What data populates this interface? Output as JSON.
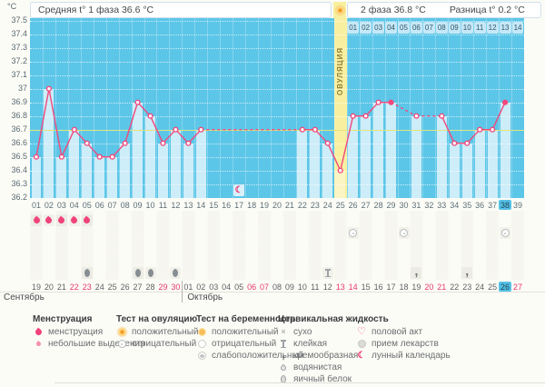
{
  "units_label": "°C",
  "header": {
    "phase1": "Средняя t° 1 фаза 36.6 °C",
    "phase2": "2 фаза 36.8 °C",
    "diff": "Разница t° 0.2 °C"
  },
  "chart_data": {
    "type": "line",
    "title": "Basal body temperature chart",
    "ylabel": "°C",
    "ylim": [
      36.2,
      37.5
    ],
    "yticks": [
      "37.5",
      "37.4",
      "37.3",
      "37.2",
      "37.1",
      "37",
      "36.9",
      "36.8",
      "36.7",
      "36.6",
      "36.5",
      "36.4",
      "36.3",
      "36.2"
    ],
    "x_labels": [
      "01",
      "02",
      "03",
      "04",
      "05",
      "06",
      "07",
      "08",
      "09",
      "10",
      "11",
      "12",
      "13",
      "14",
      "15",
      "16",
      "17",
      "18",
      "19",
      "20",
      "21",
      "22",
      "23",
      "24",
      "25",
      "26",
      "27",
      "28",
      "29",
      "30",
      "31",
      "32",
      "33",
      "34",
      "35",
      "36",
      "37",
      "38",
      "39"
    ],
    "temps": [
      36.5,
      37.0,
      36.5,
      36.7,
      36.6,
      36.5,
      36.5,
      36.6,
      36.9,
      36.8,
      36.6,
      36.7,
      36.6,
      36.7,
      null,
      null,
      null,
      null,
      null,
      null,
      null,
      36.7,
      36.7,
      36.6,
      36.4,
      36.8,
      36.8,
      36.9,
      36.9,
      null,
      36.8,
      null,
      36.8,
      36.6,
      36.6,
      36.7,
      36.7,
      36.9,
      null
    ],
    "filled_points": [
      29,
      38
    ],
    "coverline": 36.7,
    "ovulation_day": 25,
    "ovulation_label": "ОВУЛЯЦИЯ",
    "today_day": 38,
    "moon_day": 17,
    "phase2_strip": {
      "start_day": 26,
      "labels": [
        "01",
        "02",
        "03",
        "04",
        "05",
        "06",
        "07",
        "08",
        "09",
        "10",
        "11",
        "12",
        "13",
        "14"
      ]
    },
    "grid": true,
    "legend_position": "bottom"
  },
  "events": {
    "menstruation_days": [
      1,
      2,
      3,
      4,
      5
    ],
    "ovulation_test_negative_days": [
      26,
      30,
      38
    ],
    "cervical_fluid": [
      {
        "day": 5,
        "icon": "cf-eggwhite"
      },
      {
        "day": 9,
        "icon": "cf-eggwhite"
      },
      {
        "day": 10,
        "icon": "cf-eggwhite"
      },
      {
        "day": 12,
        "icon": "cf-eggwhite"
      },
      {
        "day": 24,
        "icon": "cf-sticky"
      },
      {
        "day": 31,
        "icon": "cf-creamy"
      },
      {
        "day": 35,
        "icon": "cf-creamy"
      }
    ]
  },
  "calendar": {
    "months": [
      {
        "name": "Сентябрь",
        "start_day": 1,
        "dates": [
          "19",
          "20",
          "21",
          "22",
          "23",
          "24",
          "25",
          "26",
          "27",
          "28",
          "29",
          "30"
        ],
        "weekend": [
          "22",
          "23",
          "29",
          "30"
        ],
        "today": ""
      },
      {
        "name": "Октябрь",
        "start_day": 13,
        "dates": [
          "01",
          "02",
          "03",
          "04",
          "05",
          "06",
          "07",
          "08",
          "09",
          "10",
          "11",
          "12",
          "13",
          "14",
          "15",
          "16",
          "17",
          "18",
          "19",
          "20",
          "21",
          "22",
          "23",
          "24",
          "25",
          "26",
          "27"
        ],
        "weekend": [
          "06",
          "07",
          "13",
          "14",
          "20",
          "21",
          "27"
        ],
        "today": "26"
      }
    ]
  },
  "legend": {
    "columns": [
      {
        "title": "Менструация",
        "x": 36,
        "items": [
          {
            "icon": "drop",
            "label": "менструация"
          },
          {
            "icon": "drop-small",
            "label": "небольшие выделения"
          }
        ]
      },
      {
        "title": "Тест на овуляцию",
        "x": 128,
        "items": [
          {
            "icon": "ov-pos",
            "label": "положительный"
          },
          {
            "icon": "ov-neg",
            "label": "отрицательный"
          }
        ]
      },
      {
        "title": "Тест на беременность",
        "x": 216,
        "items": [
          {
            "icon": "preg-pos",
            "label": "положительный"
          },
          {
            "icon": "preg-neg",
            "label": "отрицательный"
          },
          {
            "icon": "preg-weak",
            "label": "слабоположительный"
          }
        ]
      },
      {
        "title": "Цервикальная жидкость",
        "x": 306,
        "items": [
          {
            "icon": "cf-dry",
            "label": "сухо"
          },
          {
            "icon": "cf-sticky",
            "label": "клейкая"
          },
          {
            "icon": "cf-creamy",
            "label": "кремообразная"
          },
          {
            "icon": "cf-watery",
            "label": "водянистая"
          },
          {
            "icon": "cf-eggwhite",
            "label": "яичный белок"
          }
        ]
      },
      {
        "title": "",
        "x": 392,
        "items": [
          {
            "icon": "intercourse",
            "label": "половой акт"
          },
          {
            "icon": "medication",
            "label": "прием лекарств"
          },
          {
            "icon": "moon",
            "label": "лунный календарь"
          }
        ]
      }
    ]
  },
  "colors": {
    "chart_bg": "#5cc6e8",
    "bar": "#cdedf9",
    "line_pink": "#f2487c",
    "coverline": "#e3e57c",
    "ovulation_column": "#f8f0a0",
    "today_highlight": "#55c1e7",
    "weekend_red": "#e8386c"
  }
}
